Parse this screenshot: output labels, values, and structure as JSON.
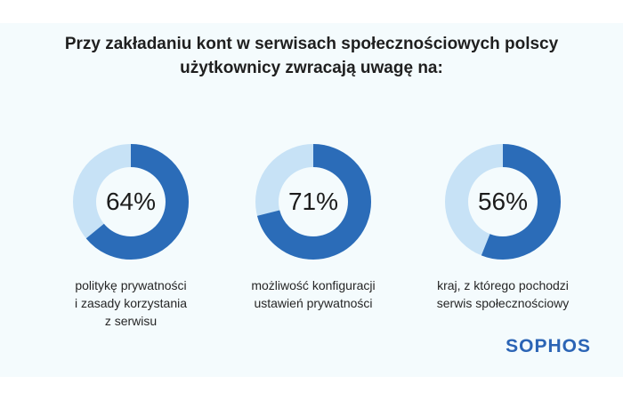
{
  "title_lines": [
    "Przy zakładaniu kont w serwisach społecznościowych polscy",
    "użytkownicy zwracają uwagę na:"
  ],
  "chart_data": {
    "type": "pie",
    "title": "Przy zakładaniu kont w serwisach społecznościowych polscy użytkownicy zwracają uwagę na:",
    "items": [
      {
        "value": 64,
        "label": "64%",
        "caption": [
          "politykę prywatności",
          "i zasady korzystania",
          "z serwisu"
        ]
      },
      {
        "value": 71,
        "label": "71%",
        "caption": [
          "możliwość konfiguracji",
          "ustawień prywatności"
        ]
      },
      {
        "value": 56,
        "label": "56%",
        "caption": [
          "kraj, z którego pochodzi",
          "serwis społecznościowy"
        ]
      }
    ],
    "colors": {
      "filled": "#2b6cb8",
      "track": "#c7e2f6"
    }
  },
  "logo": "SOPHOS",
  "colors": {
    "background": "#f4fbfd",
    "brand": "#2b64b5"
  }
}
